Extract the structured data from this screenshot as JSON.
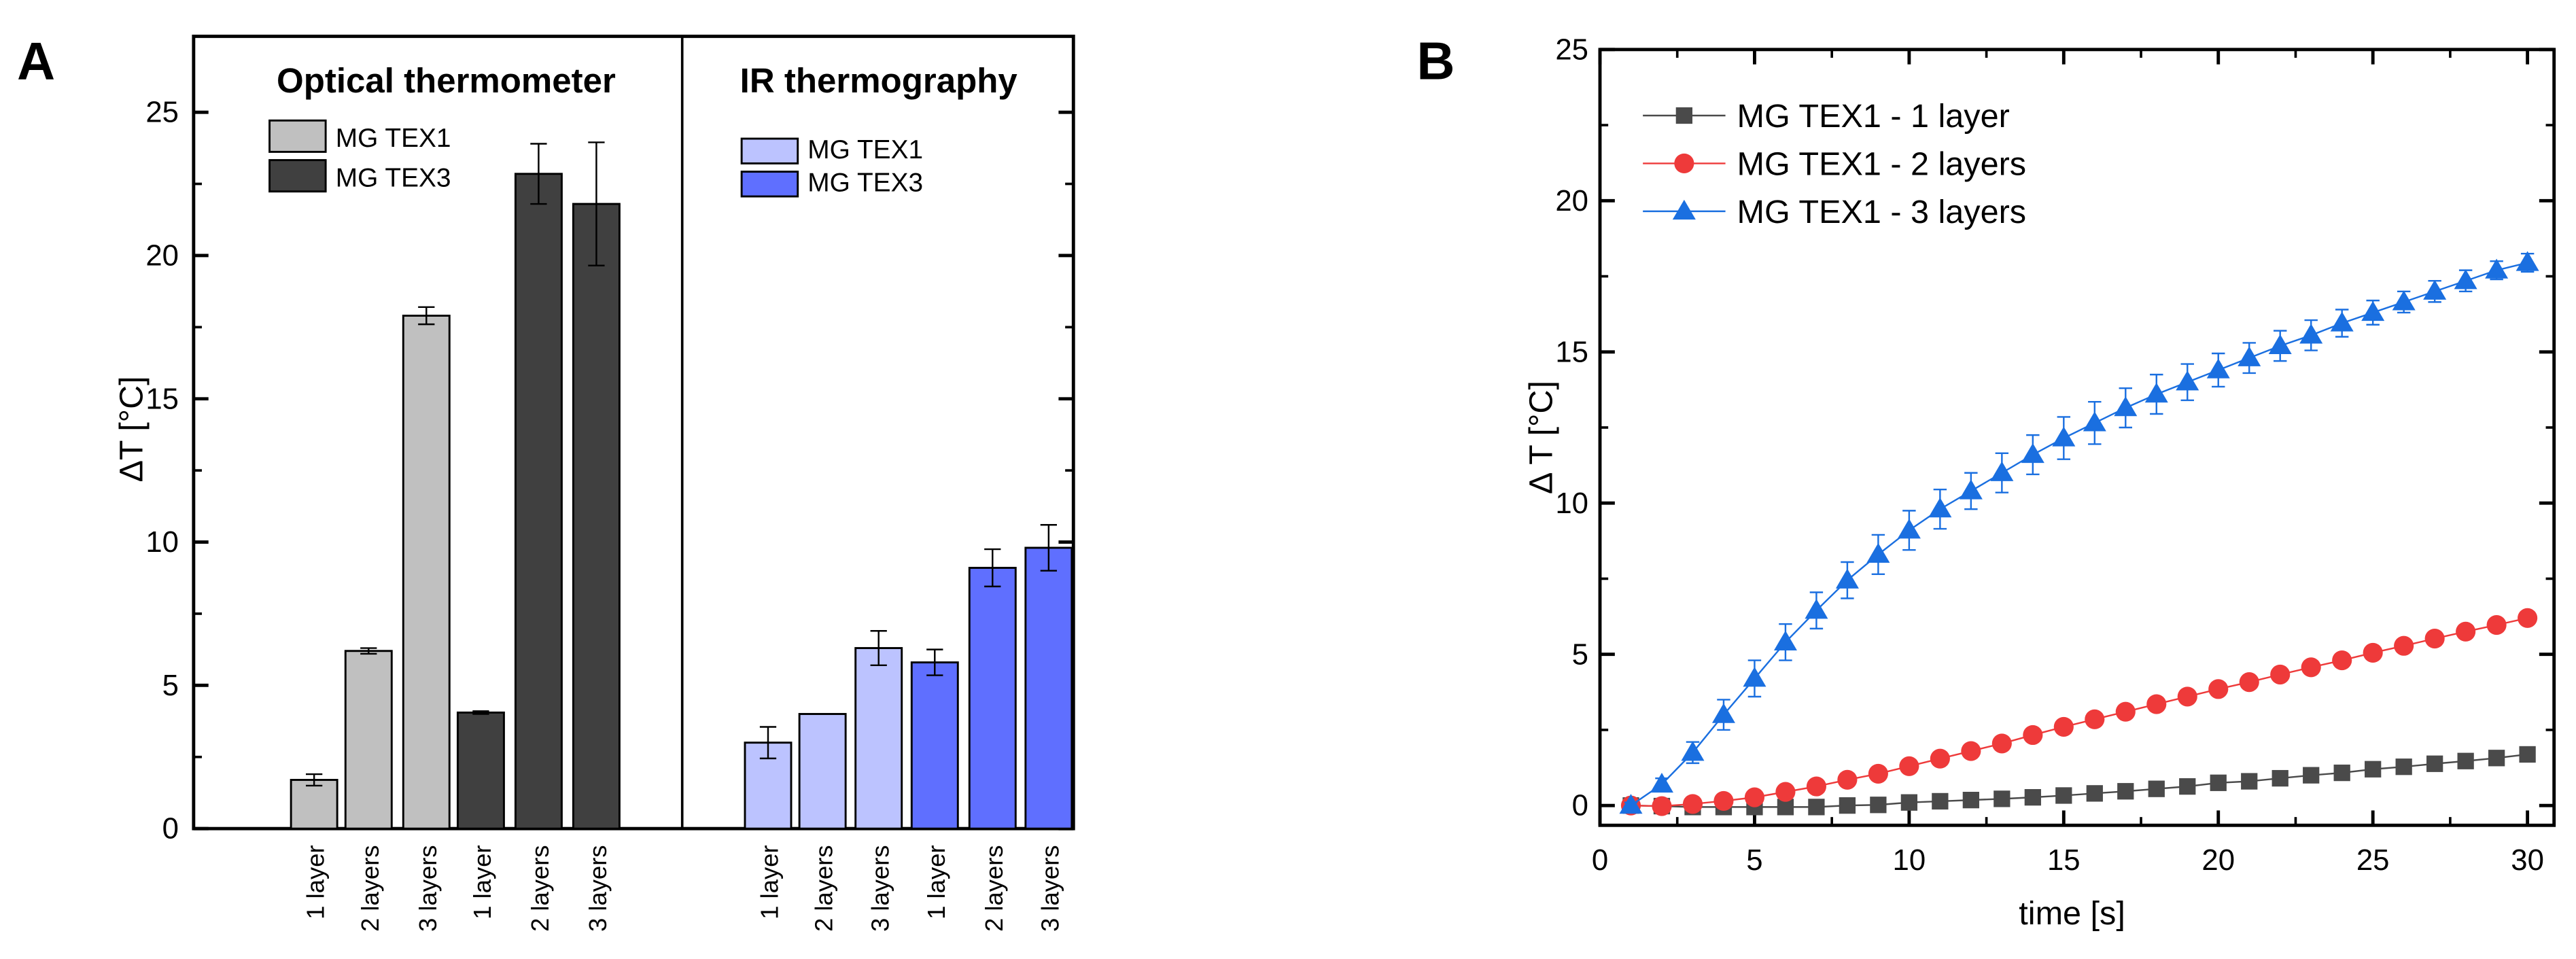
{
  "chart_data": [
    {
      "panel_label": "A",
      "type": "bar",
      "ylabel": "ΔT [°C]",
      "ylim": [
        0,
        27.5
      ],
      "yticks": [
        "0",
        "5",
        "10",
        "15",
        "20",
        "25"
      ],
      "categories": [
        "1 layer",
        "2 layers",
        "3 layers"
      ],
      "groups": [
        {
          "title": "Optical thermometer",
          "series": [
            {
              "name": "MG TEX1",
              "color": "#c0c0c0",
              "values": [
                1.7,
                6.2,
                17.9
              ],
              "errors": [
                0.2,
                0.1,
                0.3
              ]
            },
            {
              "name": "MG TEX3",
              "color": "#404040",
              "values": [
                4.05,
                22.85,
                21.8
              ],
              "errors": [
                0.05,
                1.05,
                2.15
              ]
            }
          ]
        },
        {
          "title": "IR thermography",
          "series": [
            {
              "name": "MG TEX1",
              "color": "#bcc3ff",
              "values": [
                3.0,
                4.0,
                6.3
              ],
              "errors": [
                0.55,
                0.0,
                0.6
              ]
            },
            {
              "name": "MG TEX3",
              "color": "#5f6fff",
              "values": [
                5.8,
                9.1,
                9.8
              ],
              "errors": [
                0.45,
                0.65,
                0.8
              ]
            }
          ]
        }
      ]
    },
    {
      "panel_label": "B",
      "type": "line",
      "xlabel": "time [s]",
      "ylabel": "Δ T [°C]",
      "xlim": [
        0,
        31
      ],
      "ylim": [
        -0.6,
        25
      ],
      "xticks": [
        "0",
        "5",
        "10",
        "15",
        "20",
        "25",
        "30"
      ],
      "yticks": [
        "0",
        "5",
        "10",
        "15",
        "20",
        "25"
      ],
      "legend_position": "top-left",
      "x": [
        1,
        2,
        3,
        4,
        5,
        6,
        7,
        8,
        9,
        10,
        11,
        12,
        13,
        14,
        15,
        16,
        17,
        18,
        19,
        20,
        21,
        22,
        23,
        24,
        25,
        26,
        27,
        28,
        29,
        30
      ],
      "series": [
        {
          "name": "MG TEX1 - 1 layer",
          "color": "#4a4a4a",
          "marker": "square",
          "values": [
            0,
            -0.02,
            -0.05,
            -0.05,
            -0.05,
            -0.05,
            -0.05,
            0,
            0.02,
            0.1,
            0.14,
            0.18,
            0.22,
            0.27,
            0.33,
            0.4,
            0.47,
            0.55,
            0.63,
            0.75,
            0.8,
            0.9,
            1.0,
            1.08,
            1.2,
            1.28,
            1.38,
            1.47,
            1.57,
            1.69
          ]
        },
        {
          "name": "MG TEX1 - 2 layers",
          "color": "#ee3a3a",
          "marker": "circle",
          "values": [
            0,
            -0.02,
            0.05,
            0.15,
            0.27,
            0.45,
            0.63,
            0.85,
            1.05,
            1.3,
            1.55,
            1.8,
            2.05,
            2.33,
            2.6,
            2.85,
            3.1,
            3.35,
            3.6,
            3.85,
            4.08,
            4.33,
            4.57,
            4.8,
            5.05,
            5.28,
            5.52,
            5.75,
            5.97,
            6.2
          ]
        },
        {
          "name": "MG TEX1 - 3 layers",
          "color": "#1a6fe0",
          "marker": "triangle",
          "values": [
            0,
            0.7,
            1.75,
            3.0,
            4.2,
            5.4,
            6.45,
            7.45,
            8.3,
            9.1,
            9.8,
            10.4,
            11.0,
            11.6,
            12.15,
            12.65,
            13.15,
            13.6,
            14.0,
            14.4,
            14.8,
            15.2,
            15.55,
            15.95,
            16.3,
            16.65,
            17.0,
            17.35,
            17.7,
            17.95
          ],
          "errors": [
            0.1,
            0.2,
            0.35,
            0.5,
            0.6,
            0.6,
            0.6,
            0.6,
            0.65,
            0.65,
            0.65,
            0.6,
            0.65,
            0.65,
            0.7,
            0.7,
            0.65,
            0.65,
            0.6,
            0.55,
            0.5,
            0.5,
            0.5,
            0.45,
            0.4,
            0.35,
            0.35,
            0.35,
            0.3,
            0.3
          ]
        }
      ]
    }
  ]
}
